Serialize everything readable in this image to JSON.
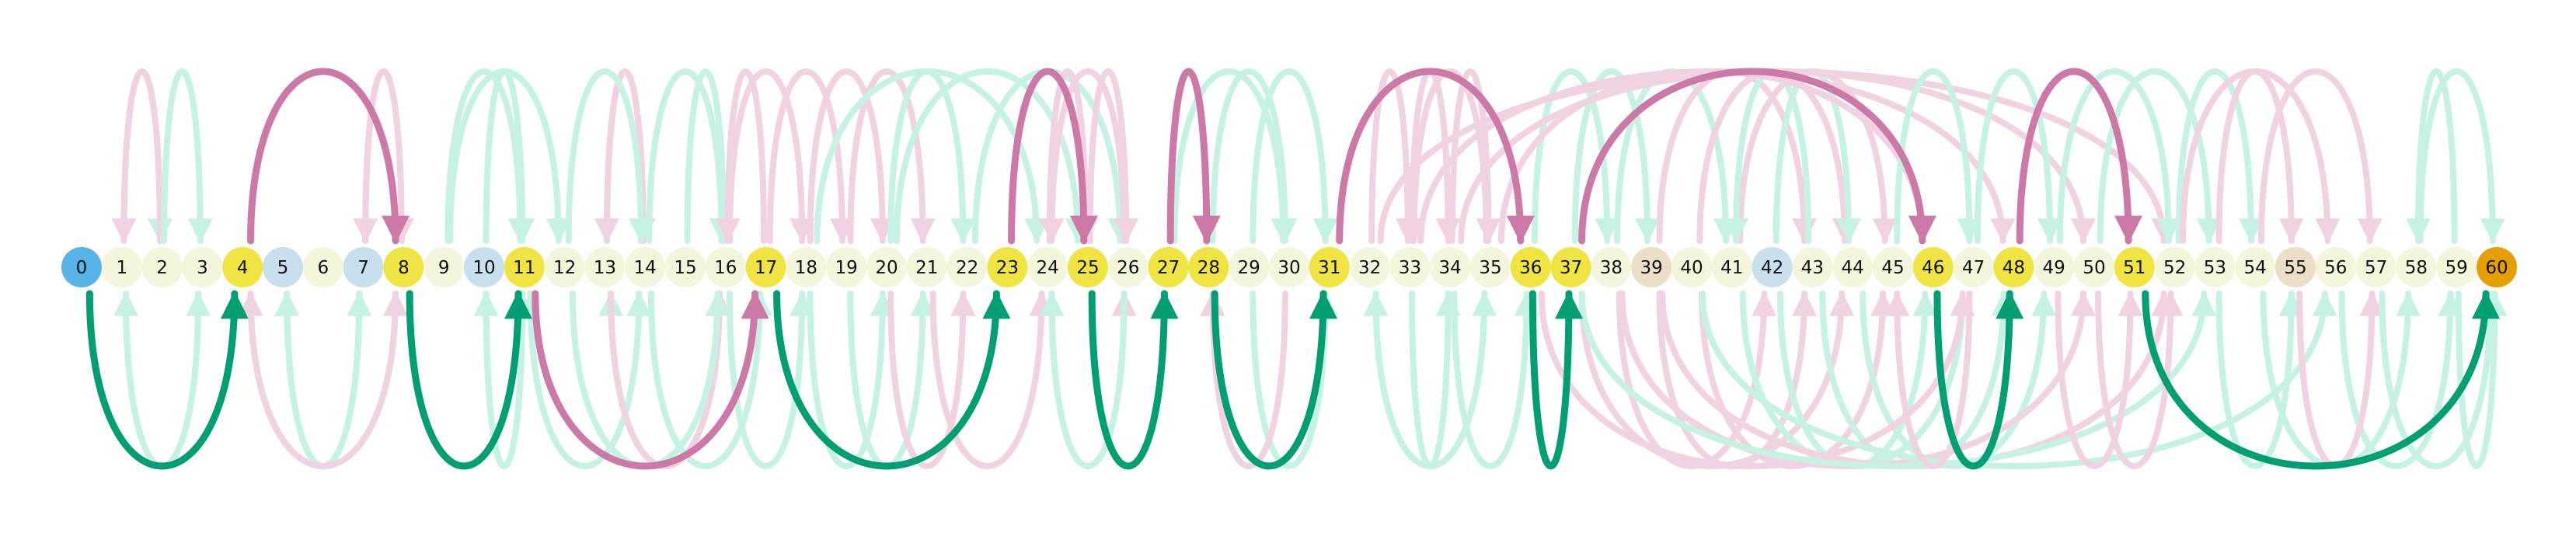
{
  "diagram": {
    "type": "arc-diagram",
    "nodes": [
      {
        "label": "0",
        "role": "start"
      },
      {
        "label": "1",
        "role": "plain"
      },
      {
        "label": "2",
        "role": "plain"
      },
      {
        "label": "3",
        "role": "plain"
      },
      {
        "label": "4",
        "role": "path"
      },
      {
        "label": "5",
        "role": "blue"
      },
      {
        "label": "6",
        "role": "plain"
      },
      {
        "label": "7",
        "role": "blue"
      },
      {
        "label": "8",
        "role": "path"
      },
      {
        "label": "9",
        "role": "plain"
      },
      {
        "label": "10",
        "role": "blue"
      },
      {
        "label": "11",
        "role": "path"
      },
      {
        "label": "12",
        "role": "plain"
      },
      {
        "label": "13",
        "role": "plain"
      },
      {
        "label": "14",
        "role": "plain"
      },
      {
        "label": "15",
        "role": "plain"
      },
      {
        "label": "16",
        "role": "plain"
      },
      {
        "label": "17",
        "role": "path"
      },
      {
        "label": "18",
        "role": "plain"
      },
      {
        "label": "19",
        "role": "plain"
      },
      {
        "label": "20",
        "role": "plain"
      },
      {
        "label": "21",
        "role": "plain"
      },
      {
        "label": "22",
        "role": "plain"
      },
      {
        "label": "23",
        "role": "path"
      },
      {
        "label": "24",
        "role": "plain"
      },
      {
        "label": "25",
        "role": "path"
      },
      {
        "label": "26",
        "role": "plain"
      },
      {
        "label": "27",
        "role": "path"
      },
      {
        "label": "28",
        "role": "path"
      },
      {
        "label": "29",
        "role": "plain"
      },
      {
        "label": "30",
        "role": "plain"
      },
      {
        "label": "31",
        "role": "path"
      },
      {
        "label": "32",
        "role": "plain"
      },
      {
        "label": "33",
        "role": "plain"
      },
      {
        "label": "34",
        "role": "plain"
      },
      {
        "label": "35",
        "role": "plain"
      },
      {
        "label": "36",
        "role": "path"
      },
      {
        "label": "37",
        "role": "path"
      },
      {
        "label": "38",
        "role": "plain"
      },
      {
        "label": "39",
        "role": "tan"
      },
      {
        "label": "40",
        "role": "plain"
      },
      {
        "label": "41",
        "role": "plain"
      },
      {
        "label": "42",
        "role": "blue"
      },
      {
        "label": "43",
        "role": "plain"
      },
      {
        "label": "44",
        "role": "plain"
      },
      {
        "label": "45",
        "role": "plain"
      },
      {
        "label": "46",
        "role": "path"
      },
      {
        "label": "47",
        "role": "plain"
      },
      {
        "label": "48",
        "role": "path"
      },
      {
        "label": "49",
        "role": "plain"
      },
      {
        "label": "50",
        "role": "plain"
      },
      {
        "label": "51",
        "role": "path"
      },
      {
        "label": "52",
        "role": "plain"
      },
      {
        "label": "53",
        "role": "plain"
      },
      {
        "label": "54",
        "role": "plain"
      },
      {
        "label": "55",
        "role": "tan"
      },
      {
        "label": "56",
        "role": "plain"
      },
      {
        "label": "57",
        "role": "plain"
      },
      {
        "label": "58",
        "role": "plain"
      },
      {
        "label": "59",
        "role": "plain"
      },
      {
        "label": "60",
        "role": "goal"
      }
    ],
    "path_edges": [
      {
        "from": 0,
        "to": 4,
        "side": "below",
        "color": "green"
      },
      {
        "from": 4,
        "to": 8,
        "side": "above",
        "color": "pink"
      },
      {
        "from": 8,
        "to": 11,
        "side": "below",
        "color": "green"
      },
      {
        "from": 11,
        "to": 17,
        "side": "below",
        "color": "pink"
      },
      {
        "from": 17,
        "to": 23,
        "side": "below",
        "color": "green"
      },
      {
        "from": 23,
        "to": 25,
        "side": "above",
        "color": "pink"
      },
      {
        "from": 25,
        "to": 27,
        "side": "below",
        "color": "green"
      },
      {
        "from": 27,
        "to": 28,
        "side": "above",
        "color": "pink"
      },
      {
        "from": 28,
        "to": 31,
        "side": "below",
        "color": "green"
      },
      {
        "from": 31,
        "to": 36,
        "side": "above",
        "color": "pink"
      },
      {
        "from": 36,
        "to": 37,
        "side": "below",
        "color": "green"
      },
      {
        "from": 37,
        "to": 46,
        "side": "above",
        "color": "pink"
      },
      {
        "from": 46,
        "to": 48,
        "side": "below",
        "color": "green"
      },
      {
        "from": 48,
        "to": 51,
        "side": "above",
        "color": "pink"
      },
      {
        "from": 51,
        "to": 60,
        "side": "below",
        "color": "green"
      }
    ],
    "faint_edges": [
      {
        "from": 1,
        "to": 2,
        "side": "above",
        "color": "green"
      },
      {
        "from": 2,
        "to": 1,
        "side": "above",
        "color": "pink"
      },
      {
        "from": 2,
        "to": 3,
        "side": "above",
        "color": "green"
      },
      {
        "from": 1,
        "to": 3,
        "side": "below",
        "color": "green"
      },
      {
        "from": 3,
        "to": 1,
        "side": "below",
        "color": "green"
      },
      {
        "from": 8,
        "to": 7,
        "side": "above",
        "color": "pink"
      },
      {
        "from": 7,
        "to": 8,
        "side": "above",
        "color": "pink"
      },
      {
        "from": 9,
        "to": 11,
        "side": "above",
        "color": "green"
      },
      {
        "from": 10,
        "to": 11,
        "side": "above",
        "color": "green"
      },
      {
        "from": 9,
        "to": 12,
        "side": "above",
        "color": "green"
      },
      {
        "from": 5,
        "to": 7,
        "side": "below",
        "color": "green"
      },
      {
        "from": 7,
        "to": 5,
        "side": "below",
        "color": "green"
      },
      {
        "from": 4,
        "to": 8,
        "side": "below",
        "color": "pink"
      },
      {
        "from": 8,
        "to": 4,
        "side": "below",
        "color": "pink"
      },
      {
        "from": 10,
        "to": 11,
        "side": "below",
        "color": "green"
      },
      {
        "from": 11,
        "to": 10,
        "side": "below",
        "color": "green"
      },
      {
        "from": 11,
        "to": 14,
        "side": "below",
        "color": "green"
      },
      {
        "from": 13,
        "to": 14,
        "side": "above",
        "color": "pink"
      },
      {
        "from": 14,
        "to": 13,
        "side": "above",
        "color": "pink"
      },
      {
        "from": 12,
        "to": 14,
        "side": "above",
        "color": "green"
      },
      {
        "from": 14,
        "to": 16,
        "side": "above",
        "color": "green"
      },
      {
        "from": 15,
        "to": 16,
        "side": "above",
        "color": "green"
      },
      {
        "from": 16,
        "to": 18,
        "side": "above",
        "color": "pink"
      },
      {
        "from": 17,
        "to": 19,
        "side": "above",
        "color": "pink"
      },
      {
        "from": 17,
        "to": 16,
        "side": "above",
        "color": "pink"
      },
      {
        "from": 18,
        "to": 20,
        "side": "above",
        "color": "pink"
      },
      {
        "from": 19,
        "to": 21,
        "side": "above",
        "color": "pink"
      },
      {
        "from": 20,
        "to": 22,
        "side": "above",
        "color": "green"
      },
      {
        "from": 18,
        "to": 24,
        "side": "above",
        "color": "green"
      },
      {
        "from": 20,
        "to": 25,
        "side": "above",
        "color": "green"
      },
      {
        "from": 22,
        "to": 26,
        "side": "above",
        "color": "green"
      },
      {
        "from": 16,
        "to": 13,
        "side": "below",
        "color": "green"
      },
      {
        "from": 13,
        "to": 16,
        "side": "below",
        "color": "pink"
      },
      {
        "from": 14,
        "to": 17,
        "side": "below",
        "color": "green"
      },
      {
        "from": 12,
        "to": 16,
        "side": "below",
        "color": "green"
      },
      {
        "from": 16,
        "to": 18,
        "side": "below",
        "color": "green"
      },
      {
        "from": 18,
        "to": 20,
        "side": "below",
        "color": "green"
      },
      {
        "from": 19,
        "to": 21,
        "side": "below",
        "color": "green"
      },
      {
        "from": 21,
        "to": 24,
        "side": "below",
        "color": "pink"
      },
      {
        "from": 20,
        "to": 22,
        "side": "below",
        "color": "pink"
      },
      {
        "from": 24,
        "to": 25,
        "side": "above",
        "color": "pink"
      },
      {
        "from": 25,
        "to": 26,
        "side": "above",
        "color": "pink"
      },
      {
        "from": 26,
        "to": 24,
        "side": "above",
        "color": "pink"
      },
      {
        "from": 28,
        "to": 30,
        "side": "above",
        "color": "green"
      },
      {
        "from": 29,
        "to": 31,
        "side": "above",
        "color": "green"
      },
      {
        "from": 27,
        "to": 30,
        "side": "above",
        "color": "green"
      },
      {
        "from": 24,
        "to": 26,
        "side": "below",
        "color": "pink"
      },
      {
        "from": 26,
        "to": 24,
        "side": "below",
        "color": "green"
      },
      {
        "from": 29,
        "to": 31,
        "side": "below",
        "color": "green"
      },
      {
        "from": 30,
        "to": 28,
        "side": "below",
        "color": "pink"
      },
      {
        "from": 32,
        "to": 33,
        "side": "above",
        "color": "pink"
      },
      {
        "from": 33,
        "to": 34,
        "side": "above",
        "color": "pink"
      },
      {
        "from": 34,
        "to": 35,
        "side": "above",
        "color": "pink"
      },
      {
        "from": 35,
        "to": 33,
        "side": "above",
        "color": "pink"
      },
      {
        "from": 32,
        "to": 35,
        "side": "below",
        "color": "green"
      },
      {
        "from": 33,
        "to": 34,
        "side": "below",
        "color": "green"
      },
      {
        "from": 35,
        "to": 32,
        "side": "below",
        "color": "green"
      },
      {
        "from": 34,
        "to": 36,
        "side": "below",
        "color": "green"
      },
      {
        "from": 36,
        "to": 38,
        "side": "above",
        "color": "green"
      },
      {
        "from": 37,
        "to": 39,
        "side": "above",
        "color": "green"
      },
      {
        "from": 38,
        "to": 41,
        "side": "above",
        "color": "green"
      },
      {
        "from": 39,
        "to": 43,
        "side": "above",
        "color": "pink"
      },
      {
        "from": 40,
        "to": 44,
        "side": "above",
        "color": "pink"
      },
      {
        "from": 41,
        "to": 45,
        "side": "above",
        "color": "pink"
      },
      {
        "from": 42,
        "to": 44,
        "side": "above",
        "color": "green"
      },
      {
        "from": 43,
        "to": 41,
        "side": "above",
        "color": "green"
      },
      {
        "from": 35,
        "to": 46,
        "side": "above",
        "color": "pink"
      },
      {
        "from": 33,
        "to": 48,
        "side": "above",
        "color": "pink"
      },
      {
        "from": 34,
        "to": 50,
        "side": "above",
        "color": "pink"
      },
      {
        "from": 32,
        "to": 52,
        "side": "above",
        "color": "pink"
      },
      {
        "from": 38,
        "to": 42,
        "side": "below",
        "color": "pink"
      },
      {
        "from": 39,
        "to": 43,
        "side": "below",
        "color": "pink"
      },
      {
        "from": 40,
        "to": 45,
        "side": "below",
        "color": "pink"
      },
      {
        "from": 37,
        "to": 44,
        "side": "below",
        "color": "pink"
      },
      {
        "from": 41,
        "to": 47,
        "side": "below",
        "color": "green"
      },
      {
        "from": 42,
        "to": 46,
        "side": "below",
        "color": "green"
      },
      {
        "from": 43,
        "to": 48,
        "side": "below",
        "color": "green"
      },
      {
        "from": 44,
        "to": 49,
        "side": "below",
        "color": "green"
      },
      {
        "from": 36,
        "to": 47,
        "side": "below",
        "color": "pink"
      },
      {
        "from": 38,
        "to": 50,
        "side": "below",
        "color": "pink"
      },
      {
        "from": 39,
        "to": 52,
        "side": "below",
        "color": "pink"
      },
      {
        "from": 40,
        "to": 56,
        "side": "below",
        "color": "green"
      },
      {
        "from": 37,
        "to": 53,
        "side": "below",
        "color": "green"
      },
      {
        "from": 45,
        "to": 47,
        "side": "above",
        "color": "green"
      },
      {
        "from": 47,
        "to": 49,
        "side": "above",
        "color": "green"
      },
      {
        "from": 49,
        "to": 52,
        "side": "above",
        "color": "green"
      },
      {
        "from": 50,
        "to": 53,
        "side": "above",
        "color": "green"
      },
      {
        "from": 52,
        "to": 54,
        "side": "above",
        "color": "green"
      },
      {
        "from": 53,
        "to": 55,
        "side": "above",
        "color": "pink"
      },
      {
        "from": 52,
        "to": 56,
        "side": "above",
        "color": "pink"
      },
      {
        "from": 54,
        "to": 57,
        "side": "above",
        "color": "pink"
      },
      {
        "from": 58,
        "to": 60,
        "side": "above",
        "color": "green"
      },
      {
        "from": 59,
        "to": 58,
        "side": "above",
        "color": "green"
      },
      {
        "from": 47,
        "to": 45,
        "side": "below",
        "color": "pink"
      },
      {
        "from": 49,
        "to": 51,
        "side": "below",
        "color": "pink"
      },
      {
        "from": 50,
        "to": 52,
        "side": "below",
        "color": "pink"
      },
      {
        "from": 53,
        "to": 55,
        "side": "below",
        "color": "green"
      },
      {
        "from": 54,
        "to": 58,
        "side": "below",
        "color": "green"
      },
      {
        "from": 56,
        "to": 59,
        "side": "below",
        "color": "green"
      },
      {
        "from": 55,
        "to": 57,
        "side": "below",
        "color": "pink"
      },
      {
        "from": 57,
        "to": 60,
        "side": "below",
        "color": "green"
      },
      {
        "from": 59,
        "to": 60,
        "side": "below",
        "color": "green"
      }
    ]
  },
  "colors": {
    "start": "#56b4e9",
    "goal": "#e69f00",
    "path": "#f0e442",
    "plain": "#f5f5dc",
    "blue": "#c8e0ee",
    "tan": "#eadfc6",
    "path_green": "#009e73",
    "path_pink": "#cc79a7",
    "faint_green": "#c6f2e4",
    "faint_pink": "#f0d2e2"
  }
}
